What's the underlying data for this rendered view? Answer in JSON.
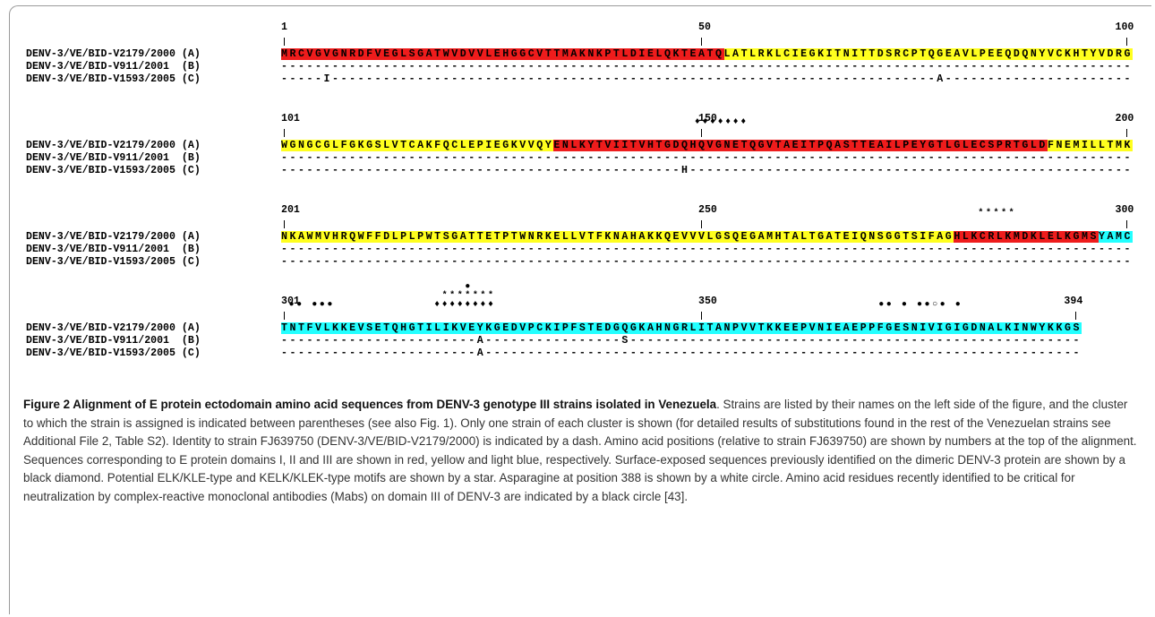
{
  "strains": [
    "DENV-3/VE/BID-V2179/2000 (A)",
    "DENV-3/VE/BID-V911/2001  (B)",
    "DENV-3/VE/BID-V1593/2005 (C)"
  ],
  "colors": {
    "domain_I": "#ee1c1c",
    "domain_II": "#ffff1e",
    "domain_III": "#22ffff"
  },
  "blocks": [
    {
      "start": "1",
      "mid": "50",
      "end": "100",
      "marks": [],
      "segments": [
        {
          "text": "MRCVGVGNRDFVEGLSGATWVDVVLEHGGCVTTMAKNKPTLDIELQKTEATQ",
          "domain": "I"
        },
        {
          "text": "LATLRKLCIEGKITNITTDSRCPTQGEAVLPEEQDQNYVCKHTYVDRG",
          "domain": "II"
        }
      ],
      "row_b": "----------------------------------------------------------------------------------------------------",
      "row_c": "-----I-----------------------------------------------------------------------A----------------------"
    },
    {
      "start": "101",
      "mid": "150",
      "end": "200",
      "marks": [
        "                                                      ♦♦♦♦♦♦♦"
      ],
      "segments": [
        {
          "text": "WGNGCGLFGKGSLVTCAKFQCLEPIEGKVVQY",
          "domain": "II"
        },
        {
          "text": "ENLKYTVIITVHTGDQHQVGNETQGVTAEITPQASTTEAILPEYGTLGLECSPRTGLD",
          "domain": "I"
        },
        {
          "text": "FNEMILLTMK",
          "domain": "II"
        }
      ],
      "row_b": "----------------------------------------------------------------------------------------------------",
      "row_c": "-----------------------------------------------H----------------------------------------------------"
    },
    {
      "start": "201",
      "mid": "250",
      "end": "300",
      "marks": [
        "                                                                                           *****"
      ],
      "segments": [
        {
          "text": "NKAWMVHRQWFFDLPLPWTSGATTETPTWNRKELLVTFKNAHAKKQEVVVLGSQEGAMHTALTGATEIQNSGGTSIFAG",
          "domain": "II"
        },
        {
          "text": "HLKCRLKMDKLELKGMS",
          "domain": "I"
        },
        {
          "text": "YAMC",
          "domain": "III"
        }
      ],
      "row_b": "----------------------------------------------------------------------------------------------------",
      "row_c": "----------------------------------------------------------------------------------------------------"
    },
    {
      "start": "301",
      "mid": "350",
      "end": "394",
      "marks": [
        "                        ●",
        "                     *******",
        " ●● ●●●             ♦♦♦♦♦♦♦♦                                                  ●● ● ●●○● ●"
      ],
      "segments": [
        {
          "text": "TNTFVLKKEVSETQHGTILIKVEYKGEDVPCKIPFSTEDGQGKAHNGRLITANPVVTKKEEPVNIEAEPPFGESNIVIGIGDNALKINWYKKGS",
          "domain": "III"
        }
      ],
      "row_b": "-----------------------A----------------S-----------------------------------------------------",
      "row_c": "-----------------------A----------------------------------------------------------------------"
    }
  ],
  "caption": {
    "title": "Figure 2 Alignment of E protein ectodomain amino acid sequences from DENV-3 genotype III strains isolated in Venezuela",
    "body": ". Strains are listed by their names on the left side of the figure, and the cluster to which the strain is assigned is indicated between parentheses (see also Fig. 1). Only one strain of each cluster is shown (for detailed results of substitutions found in the rest of the Venezuelan strains see Additional File 2, Table S2). Identity to strain FJ639750 (DENV-3/VE/BID-V2179/2000) is indicated by a dash. Amino acid positions (relative to strain FJ639750) are shown by numbers at the top of the alignment. Sequences corresponding to E protein domains I, II and III are shown in red, yellow and light blue, respectively. Surface-exposed sequences previously identified on the dimeric DENV-3 protein are shown by a black diamond. Potential ELK/KLE-type and KELK/KLEK-type motifs are shown by a star. Asparagine at position 388 is shown by a white circle. Amino acid residues recently identified to be critical for neutralization by complex-reactive monoclonal antibodies (Mabs) on domain III of DENV-3 are indicated by a black circle [43]."
  }
}
